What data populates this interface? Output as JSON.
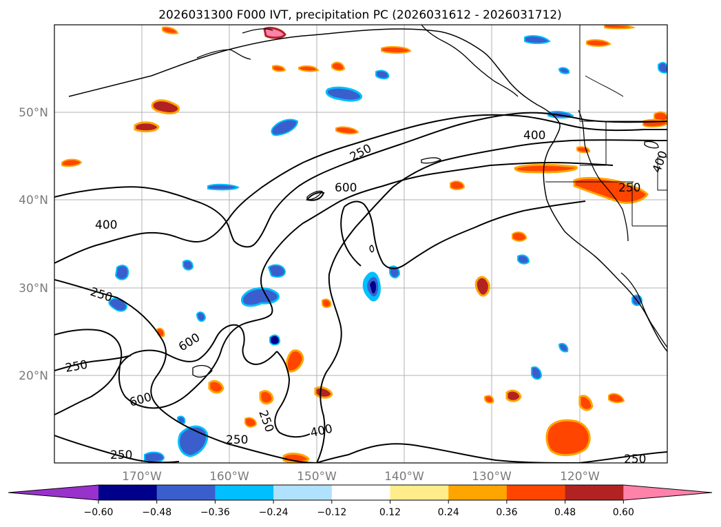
{
  "title": "2026031300 F000 IVT, precipitation PC (2026031612 - 2026031712)",
  "map": {
    "lon_labels": [
      "170°W",
      "160°W",
      "150°W",
      "140°W",
      "130°W",
      "120°W"
    ],
    "lat_labels": [
      "50°N",
      "40°N",
      "30°N",
      "20°N"
    ],
    "lon_range": [
      -180,
      -110
    ],
    "lat_range": [
      10,
      60
    ]
  },
  "ivt_contour_labels": [
    "400",
    "250",
    "600",
    "400",
    "250",
    "250",
    "600",
    "250",
    "600",
    "250",
    "400",
    "250",
    "250",
    "250",
    "400",
    "250"
  ],
  "colorbar": {
    "ticks": [
      "−0.60",
      "−0.48",
      "−0.36",
      "−0.24",
      "−0.12",
      "0.12",
      "0.24",
      "0.36",
      "0.48",
      "0.60"
    ],
    "colors": [
      "#9932cc",
      "#00008b",
      "#3a5fcd",
      "#00bfff",
      "#b0e2ff",
      "#ffffff",
      "#ffec8b",
      "#ffa500",
      "#ff4500",
      "#b22222",
      "#ff82ab"
    ]
  }
}
